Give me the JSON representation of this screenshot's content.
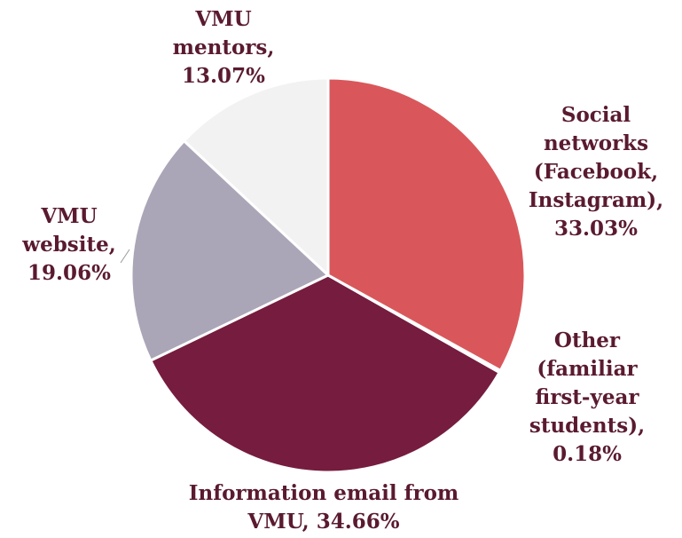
{
  "chart_data": {
    "type": "pie",
    "labels": [
      "Social networks (Facebook, Instagram), 33.03%",
      "Other (familiar first-year students), 0.18%",
      "Information email from VMU, 34.66%",
      "VMU website, 19.06%",
      "VMU mentors, 13.07%"
    ],
    "values": [
      33.03,
      0.18,
      34.66,
      19.06,
      13.07
    ],
    "colors": [
      "#d9575b",
      "#e8e8e8",
      "#761c3f",
      "#aba6b7",
      "#f2f2f2"
    ]
  }
}
